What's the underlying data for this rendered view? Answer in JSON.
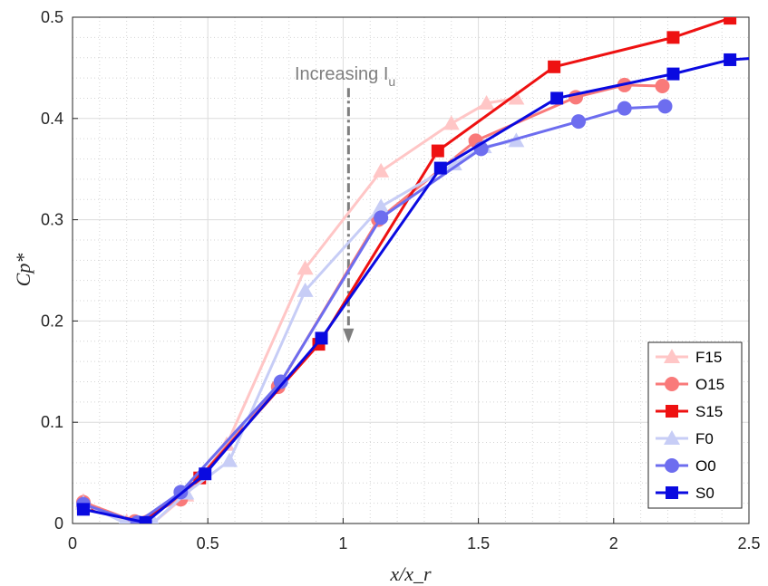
{
  "chart_data": {
    "type": "line",
    "xlabel": "x/x_r",
    "ylabel": "Cp*",
    "xlim": [
      0,
      2.5
    ],
    "ylim": [
      0,
      0.5
    ],
    "xticks": [
      "0",
      "0.5",
      "1",
      "1.5",
      "2",
      "2.5"
    ],
    "yticks": [
      "0",
      "0.1",
      "0.2",
      "0.3",
      "0.4",
      "0.5"
    ],
    "grid": true,
    "minor_grid": true,
    "legend_position": "bottom-right",
    "annotation": {
      "text": "Increasing I",
      "subscript": "u",
      "arrow_x": 1.02,
      "arrow_y_from": 0.43,
      "arrow_y_to": 0.18
    },
    "series": [
      {
        "name": "F15",
        "marker": "triangle",
        "color": "#ffc6c6",
        "x": [
          0.04,
          0.2,
          0.3,
          0.42,
          0.57,
          0.86,
          1.14,
          1.4,
          1.53,
          1.64
        ],
        "y": [
          0.022,
          0.002,
          0.001,
          0.028,
          0.078,
          0.252,
          0.348,
          0.395,
          0.415,
          0.42
        ]
      },
      {
        "name": "O15",
        "marker": "circle",
        "color": "#f97a7a",
        "x": [
          0.04,
          0.23,
          0.4,
          0.76,
          1.13,
          1.49,
          1.86,
          2.04,
          2.18
        ],
        "y": [
          0.021,
          0.002,
          0.024,
          0.135,
          0.3,
          0.378,
          0.421,
          0.433,
          0.432
        ]
      },
      {
        "name": "S15",
        "marker": "square",
        "color": "#ee1111",
        "x": [
          0.04,
          0.26,
          0.47,
          0.91,
          1.35,
          1.78,
          2.22,
          2.43
        ],
        "y": [
          0.016,
          0.001,
          0.045,
          0.177,
          0.368,
          0.451,
          0.48,
          0.499
        ]
      },
      {
        "name": "F0",
        "marker": "triangle",
        "color": "#c7cdf6",
        "x": [
          0.04,
          0.19,
          0.3,
          0.42,
          0.58,
          0.86,
          1.14,
          1.41,
          1.52,
          1.64
        ],
        "y": [
          0.02,
          0.001,
          0.001,
          0.03,
          0.062,
          0.23,
          0.313,
          0.355,
          0.372,
          0.378
        ]
      },
      {
        "name": "O0",
        "marker": "circle",
        "color": "#6d6def",
        "x": [
          0.04,
          0.24,
          0.4,
          0.77,
          1.14,
          1.51,
          1.87,
          2.04,
          2.19
        ],
        "y": [
          0.019,
          0.001,
          0.031,
          0.14,
          0.302,
          0.37,
          0.397,
          0.41,
          0.412
        ]
      },
      {
        "name": "S0",
        "marker": "square",
        "color": "#0a0ae0",
        "x": [
          0.04,
          0.27,
          0.49,
          0.92,
          1.36,
          1.79,
          2.22,
          2.43,
          2.55
        ],
        "y": [
          0.014,
          0.001,
          0.049,
          0.183,
          0.351,
          0.42,
          0.444,
          0.458,
          0.46
        ]
      }
    ]
  }
}
